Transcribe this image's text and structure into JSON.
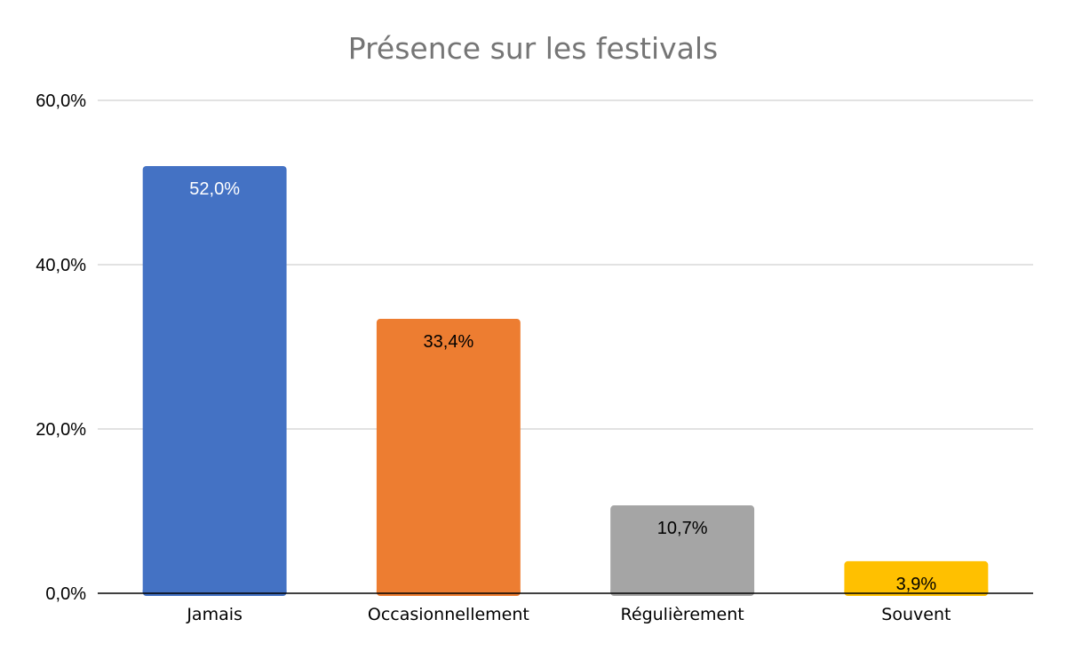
{
  "chart_data": {
    "type": "bar",
    "title": "Présence sur les festivals",
    "xlabel": "",
    "ylabel": "",
    "categories": [
      "Jamais",
      "Occasionnellement",
      "Régulièrement",
      "Souvent"
    ],
    "values": [
      52.0,
      33.4,
      10.7,
      3.9
    ],
    "data_labels": [
      "52,0%",
      "33,4%",
      "10,7%",
      "3,9%"
    ],
    "colors": [
      "#4472C4",
      "#ED7D31",
      "#A5A5A5",
      "#FFC000"
    ],
    "label_colors": [
      "#ffffff",
      "#000000",
      "#000000",
      "#000000"
    ],
    "ylim": [
      0,
      60
    ],
    "yticks": [
      0,
      20,
      40,
      60
    ],
    "ytick_labels": [
      "0,0%",
      "20,0%",
      "40,0%",
      "60,0%"
    ],
    "grid": true,
    "legend": "none"
  }
}
